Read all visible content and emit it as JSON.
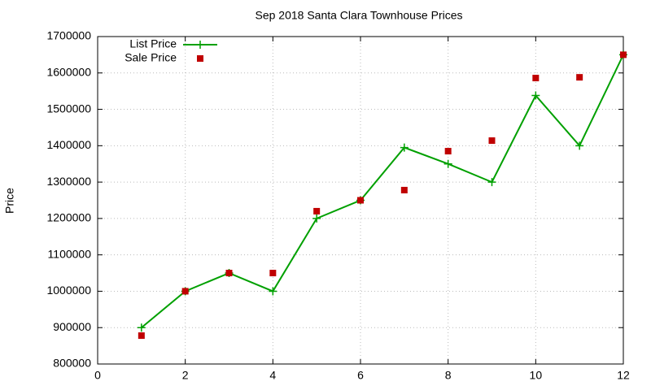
{
  "chart_data": {
    "type": "line",
    "title": "Sep 2018 Santa Clara Townhouse Prices",
    "y_label": "Price",
    "x": [
      1,
      2,
      3,
      4,
      5,
      6,
      7,
      8,
      9,
      10,
      11,
      12
    ],
    "series": [
      {
        "name": "List Price",
        "color": "#00a000",
        "style": "linespoints",
        "values": [
          900000,
          1000000,
          1050000,
          1000000,
          1200000,
          1250000,
          1395000,
          1350000,
          1300000,
          1538000,
          1400000,
          1650000
        ]
      },
      {
        "name": "Sale Price",
        "color": "#c00000",
        "style": "points",
        "values": [
          878000,
          1000000,
          1050000,
          1050000,
          1220000,
          1250000,
          1278000,
          1385000,
          1414000,
          1586000,
          1588000,
          1650000
        ]
      }
    ],
    "xlim": [
      0,
      12
    ],
    "xticks": [
      0,
      2,
      4,
      6,
      8,
      10,
      12
    ],
    "ylim": [
      800000,
      1700000
    ],
    "yticks": [
      800000,
      900000,
      1000000,
      1100000,
      1200000,
      1300000,
      1400000,
      1500000,
      1600000,
      1700000
    ],
    "grid": true,
    "legend": "top-left"
  }
}
